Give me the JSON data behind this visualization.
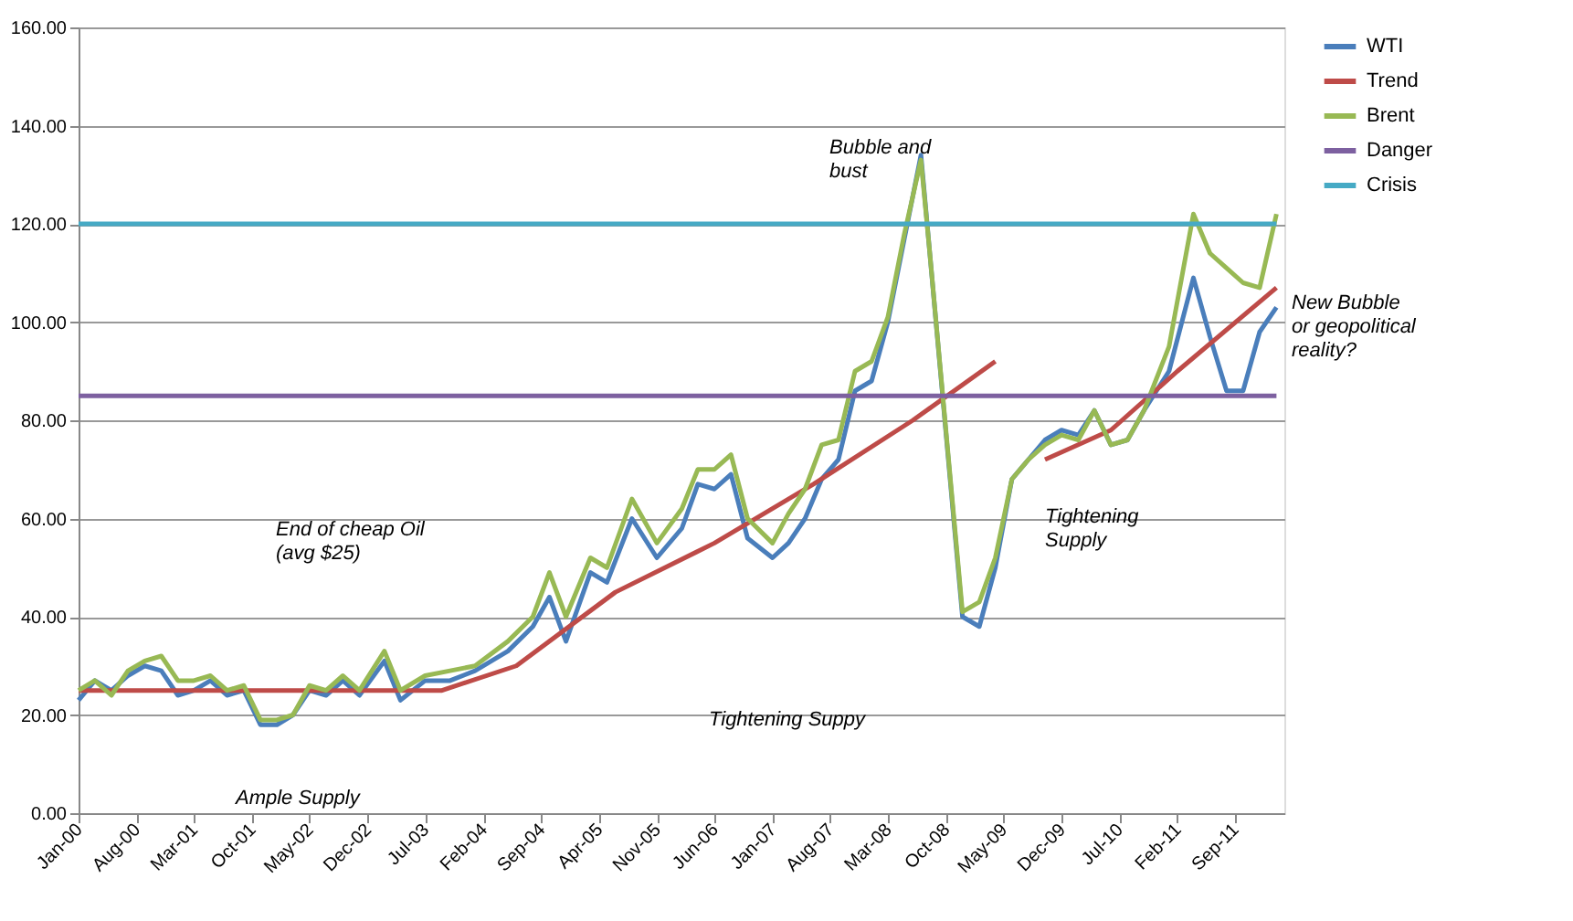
{
  "chart_data": {
    "type": "line",
    "ylim": [
      0,
      160
    ],
    "yticks": [
      {
        "value": 0,
        "label": "0.00"
      },
      {
        "value": 20,
        "label": "20.00"
      },
      {
        "value": 40,
        "label": "40.00"
      },
      {
        "value": 60,
        "label": "60.00"
      },
      {
        "value": 80,
        "label": "80.00"
      },
      {
        "value": 100,
        "label": "100.00"
      },
      {
        "value": 120,
        "label": "120.00"
      },
      {
        "value": 140,
        "label": "140.00"
      },
      {
        "value": 160,
        "label": "160.00"
      }
    ],
    "xlim": [
      "2000-01",
      "2012-03"
    ],
    "xticks": [
      {
        "value": "2000-01",
        "label": "Jan-00"
      },
      {
        "value": "2000-08",
        "label": "Aug-00"
      },
      {
        "value": "2001-03",
        "label": "Mar-01"
      },
      {
        "value": "2001-10",
        "label": "Oct-01"
      },
      {
        "value": "2002-05",
        "label": "May-02"
      },
      {
        "value": "2002-12",
        "label": "Dec-02"
      },
      {
        "value": "2003-07",
        "label": "Jul-03"
      },
      {
        "value": "2004-02",
        "label": "Feb-04"
      },
      {
        "value": "2004-09",
        "label": "Sep-04"
      },
      {
        "value": "2005-04",
        "label": "Apr-05"
      },
      {
        "value": "2005-11",
        "label": "Nov-05"
      },
      {
        "value": "2006-06",
        "label": "Jun-06"
      },
      {
        "value": "2007-01",
        "label": "Jan-07"
      },
      {
        "value": "2007-08",
        "label": "Aug-07"
      },
      {
        "value": "2008-03",
        "label": "Mar-08"
      },
      {
        "value": "2008-10",
        "label": "Oct-08"
      },
      {
        "value": "2009-05",
        "label": "May-09"
      },
      {
        "value": "2009-12",
        "label": "Dec-09"
      },
      {
        "value": "2010-07",
        "label": "Jul-10"
      },
      {
        "value": "2011-02",
        "label": "Feb-11"
      },
      {
        "value": "2011-09",
        "label": "Sep-11"
      }
    ],
    "grid": "y",
    "legend": "right",
    "marker": "none",
    "line_style": "solid",
    "x": [
      "2000-01",
      "2000-03",
      "2000-05",
      "2000-07",
      "2000-09",
      "2000-11",
      "2001-01",
      "2001-03",
      "2001-05",
      "2001-07",
      "2001-09",
      "2001-11",
      "2002-01",
      "2002-03",
      "2002-05",
      "2002-07",
      "2002-09",
      "2002-11",
      "2003-02",
      "2003-04",
      "2003-07",
      "2003-10",
      "2004-01",
      "2004-05",
      "2004-08",
      "2004-10",
      "2004-12",
      "2005-03",
      "2005-05",
      "2005-08",
      "2005-11",
      "2006-02",
      "2006-04",
      "2006-06",
      "2006-08",
      "2006-10",
      "2007-01",
      "2007-03",
      "2007-05",
      "2007-07",
      "2007-09",
      "2007-11",
      "2008-01",
      "2008-03",
      "2008-05",
      "2008-07",
      "2008-08",
      "2008-12",
      "2009-02",
      "2009-04",
      "2009-06",
      "2009-08",
      "2009-10",
      "2009-12",
      "2010-02",
      "2010-04",
      "2010-06",
      "2010-08",
      "2010-10",
      "2011-01",
      "2011-04",
      "2011-06",
      "2011-08",
      "2011-10",
      "2011-12",
      "2012-02"
    ],
    "series": [
      {
        "name": "WTI",
        "color": "#4a7ebb",
        "values": [
          23,
          27,
          25,
          28,
          30,
          29,
          24,
          25,
          27,
          24,
          25,
          18,
          18,
          20,
          25,
          24,
          27,
          24,
          31,
          23,
          27,
          27,
          29,
          33,
          38,
          44,
          35,
          49,
          47,
          60,
          52,
          58,
          67,
          66,
          69,
          56,
          52,
          55,
          60,
          68,
          72,
          86,
          88,
          100,
          117,
          134,
          115,
          40,
          38,
          50,
          68,
          72,
          76,
          78,
          77,
          82,
          75,
          76,
          82,
          90,
          109,
          97,
          86,
          86,
          98,
          103
        ]
      },
      {
        "name": "Trend",
        "color": "#be4b48",
        "x": [
          "2000-01",
          "2003-09",
          "2004-06",
          "2005-06",
          "2006-06",
          "2007-06",
          "2008-06",
          "2009-04",
          "2009-07",
          "2009-10",
          "2010-06",
          "2011-02",
          "2012-02"
        ],
        "values": [
          25,
          25,
          30,
          45,
          55,
          67,
          80,
          92,
          null,
          72,
          78,
          90,
          107
        ]
      },
      {
        "name": "Brent",
        "color": "#98b954",
        "values": [
          25,
          27,
          24,
          29,
          31,
          32,
          27,
          27,
          28,
          25,
          26,
          19,
          19,
          20,
          26,
          25,
          28,
          25,
          33,
          25,
          28,
          29,
          30,
          35,
          40,
          49,
          40,
          52,
          50,
          64,
          55,
          62,
          70,
          70,
          73,
          60,
          55,
          61,
          66,
          75,
          76,
          90,
          92,
          101,
          118,
          133,
          115,
          41,
          43,
          52,
          68,
          72,
          75,
          77,
          76,
          82,
          75,
          76,
          82,
          95,
          122,
          114,
          111,
          108,
          107,
          122
        ]
      },
      {
        "name": "Danger",
        "color": "#7d60a0",
        "x": [
          "2000-01",
          "2012-02"
        ],
        "values": [
          85,
          85
        ]
      },
      {
        "name": "Crisis",
        "color": "#46aac5",
        "x": [
          "2000-01",
          "2012-02"
        ],
        "values": [
          120,
          120
        ]
      }
    ],
    "annotations": [
      "Bubble and\nbust",
      "New Bubble\nor geopolitical\nreality?",
      "Tightening Suppy",
      "Tightening\nSupply",
      "Ample Supply",
      "End of cheap Oil\n(avg $25)"
    ]
  }
}
